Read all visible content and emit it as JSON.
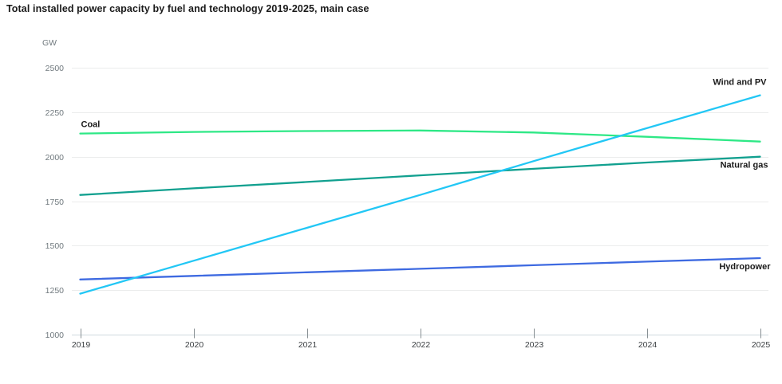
{
  "page": {
    "background": "#ffffff"
  },
  "chart_data": {
    "type": "line",
    "title": "Total installed power capacity by fuel and technology 2019-2025, main case",
    "xlabel": "",
    "ylabel": "GW",
    "x": [
      2019,
      2020,
      2021,
      2022,
      2023,
      2024,
      2025
    ],
    "ylim": [
      1000,
      2500
    ],
    "ytick_step": 250,
    "grid": "horizontal-only",
    "legend_position": "inline-labels",
    "axis_style": {
      "gridline_color": "#ebecec",
      "baseline_color": "#cfd9df",
      "tick_color": "#878f93",
      "x_label_color": "#3c4043",
      "y_label_color": "#70797e",
      "series_label_color": "#1a1a1a"
    },
    "series": [
      {
        "name": "Coal",
        "color": "#2ee886",
        "values": [
          2130,
          2139,
          2144,
          2147,
          2136,
          2112,
          2085
        ],
        "label": {
          "point": "first",
          "anchor": "start",
          "dx": 1,
          "dy": -8
        }
      },
      {
        "name": "Natural gas",
        "color": "#11a08f",
        "values": [
          1785,
          1822,
          1858,
          1895,
          1932,
          1967,
          2000
        ],
        "label": {
          "point": "last",
          "anchor": "end",
          "dx": 10,
          "dy": 14
        }
      },
      {
        "name": "Hydropower",
        "color": "#3e6ae1",
        "values": [
          1310,
          1330,
          1350,
          1370,
          1390,
          1410,
          1430
        ],
        "label": {
          "point": "last",
          "anchor": "end",
          "dx": 13,
          "dy": 14
        }
      },
      {
        "name": "Wind and PV",
        "color": "#22c7f5",
        "values": [
          1230,
          1415,
          1600,
          1785,
          1975,
          2160,
          2345
        ],
        "label": {
          "point": "last",
          "anchor": "end",
          "dx": 8,
          "dy": -13
        }
      }
    ]
  }
}
